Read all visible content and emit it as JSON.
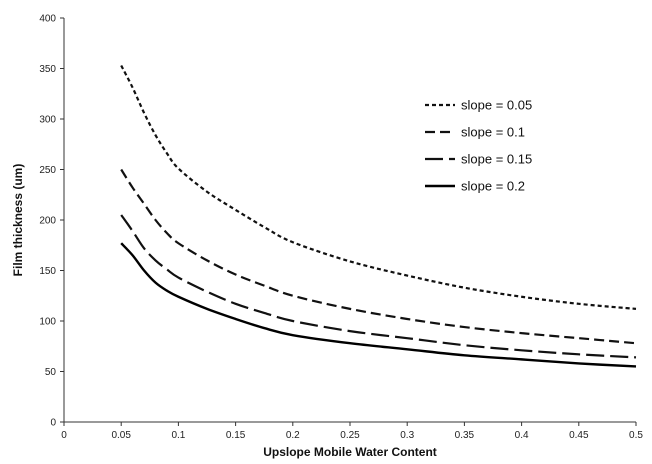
{
  "chart_data": {
    "type": "line",
    "title": "",
    "xlabel": "Upslope Mobile Water Content",
    "ylabel": "Film thickness (um)",
    "xlim": [
      0,
      0.5
    ],
    "ylim": [
      0,
      400
    ],
    "xticks": [
      0,
      0.05,
      0.1,
      0.15,
      0.2,
      0.25,
      0.3,
      0.35,
      0.4,
      0.45,
      0.5
    ],
    "xtick_labels": [
      "0",
      "0.05",
      "0.1",
      "0.15",
      "0.2",
      "0.25",
      "0.3",
      "0.35",
      "0.4",
      "0.45",
      "0.5"
    ],
    "yticks": [
      0,
      50,
      100,
      150,
      200,
      250,
      300,
      350,
      400
    ],
    "ytick_labels": [
      "0",
      "50",
      "100",
      "150",
      "200",
      "250",
      "300",
      "350",
      "400"
    ],
    "grid": false,
    "legend_position": "top-right",
    "x": [
      0.05,
      0.06,
      0.07,
      0.08,
      0.09,
      0.1,
      0.125,
      0.15,
      0.175,
      0.2,
      0.25,
      0.3,
      0.35,
      0.4,
      0.45,
      0.5
    ],
    "series": [
      {
        "name": "slope = 0.05",
        "dash": "4,3",
        "color": "#111111",
        "values": [
          353,
          331,
          306,
          284,
          266,
          251,
          228,
          210,
          193,
          178,
          159,
          145,
          133,
          124,
          117,
          112
        ]
      },
      {
        "name": "slope = 0.1",
        "dash": "10,5",
        "color": "#111111",
        "values": [
          250,
          232,
          216,
          200,
          187,
          177,
          160,
          146,
          135,
          125,
          112,
          102,
          94,
          88,
          83,
          78
        ]
      },
      {
        "name": "slope = 0.15",
        "dash": "18,6",
        "color": "#111111",
        "values": [
          205,
          189,
          172,
          160,
          151,
          143,
          129,
          117,
          108,
          100,
          90,
          83,
          76,
          71,
          67,
          64
        ]
      },
      {
        "name": "slope = 0.2",
        "dash": "",
        "color": "#000000",
        "values": [
          177,
          165,
          150,
          138,
          130,
          124,
          112,
          102,
          93,
          86,
          78,
          72,
          66,
          62,
          58,
          55
        ]
      }
    ]
  }
}
